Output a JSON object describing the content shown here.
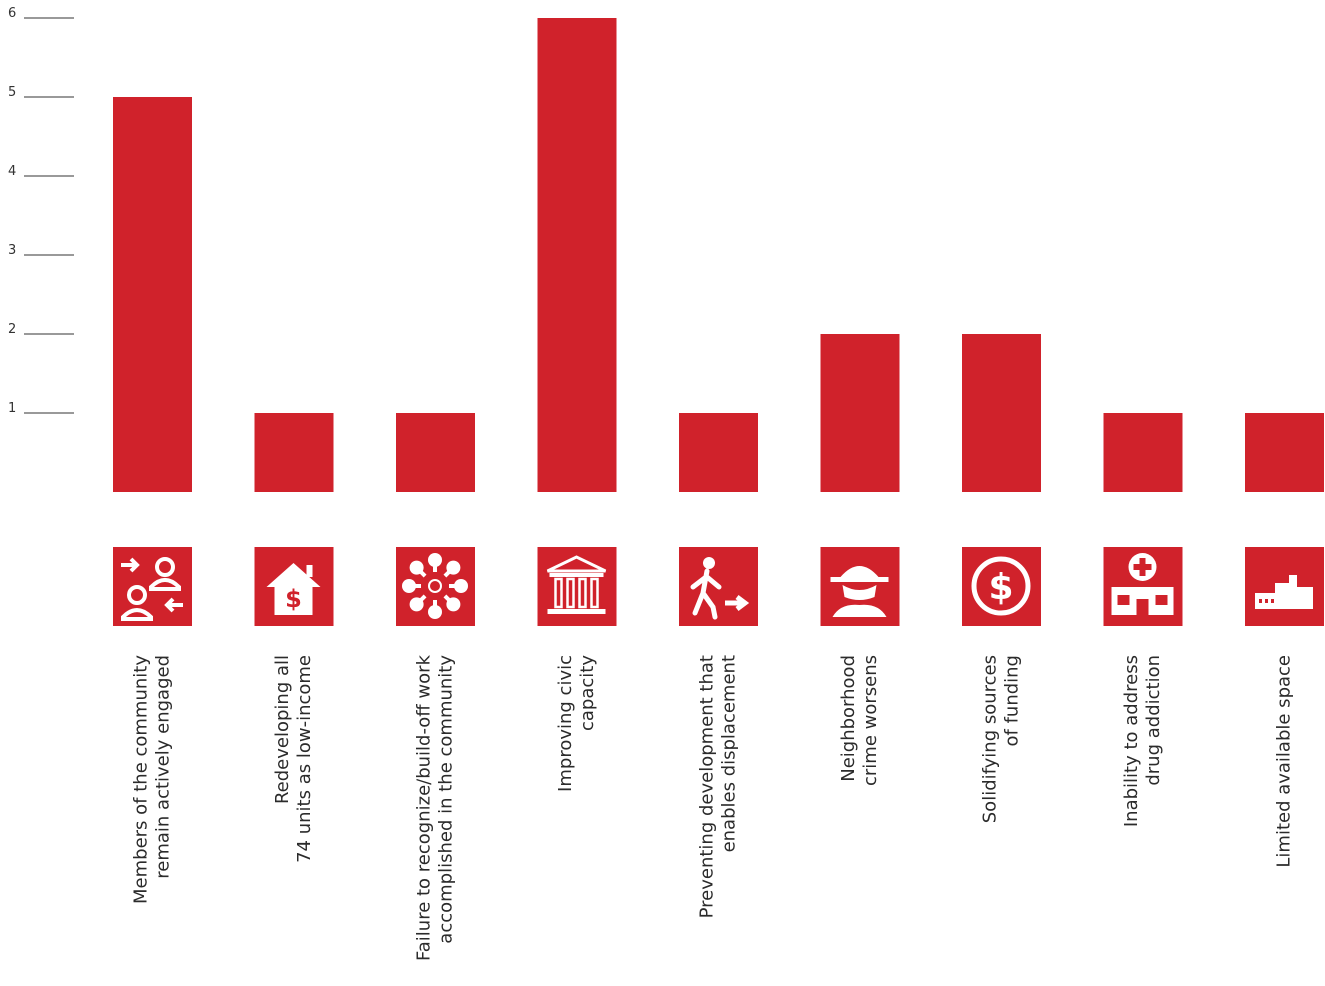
{
  "chart_data": {
    "type": "bar",
    "title": "",
    "xlabel": "",
    "ylabel": "",
    "ylim": [
      0,
      6
    ],
    "yticks": [
      1,
      2,
      3,
      4,
      5,
      6
    ],
    "grid": false,
    "bar_color": "#D0222B",
    "categories": [
      {
        "label_lines": [
          "Members of the community",
          "remain actively engaged"
        ],
        "icon": "people-exchange-icon"
      },
      {
        "label_lines": [
          "Redeveloping all",
          "74 units as low-income"
        ],
        "icon": "house-dollar-icon"
      },
      {
        "label_lines": [
          "Failure to recognize/build-off work",
          "accomplished in the community"
        ],
        "icon": "hands-circle-icon"
      },
      {
        "label_lines": [
          "Improving civic",
          "capacity"
        ],
        "icon": "civic-building-icon"
      },
      {
        "label_lines": [
          "Preventing development that",
          "enables displacement"
        ],
        "icon": "walking-person-arrow-icon"
      },
      {
        "label_lines": [
          "Neighborhood",
          "crime worsens"
        ],
        "icon": "masked-figure-icon"
      },
      {
        "label_lines": [
          "Solidifying sources",
          "of funding"
        ],
        "icon": "dollar-coin-icon"
      },
      {
        "label_lines": [
          "Inability to address",
          "drug addiction"
        ],
        "icon": "clinic-cross-icon"
      },
      {
        "label_lines": [
          "Limited available space"
        ],
        "icon": "buildings-icon"
      }
    ],
    "values": [
      5,
      1,
      1,
      6,
      1,
      2,
      2,
      1,
      1
    ]
  }
}
